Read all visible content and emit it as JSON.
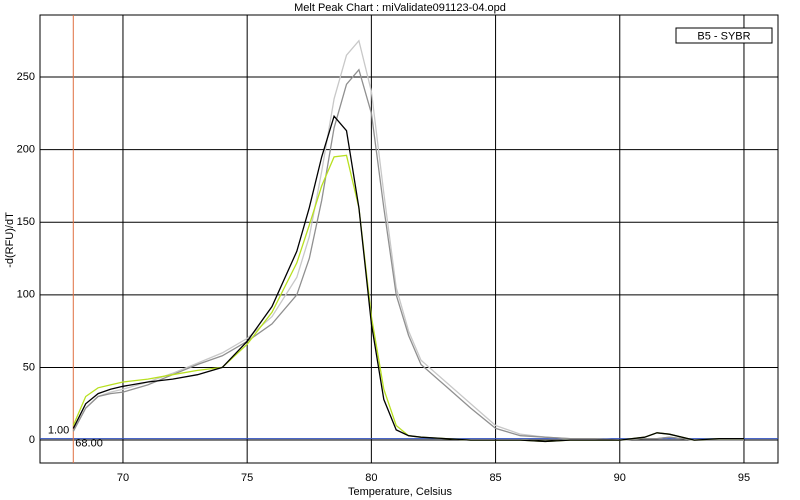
{
  "chart_data": {
    "type": "line",
    "title": "Melt Peak Chart : miValidate091123-04.opd",
    "xlabel": "Temperature, Celsius",
    "ylabel": "-d(RFU)/dT",
    "legend": {
      "label": "B5 - SYBR",
      "position": "upper right"
    },
    "threshold": {
      "value": 1,
      "label": "1.00",
      "color": "#3050c0"
    },
    "cursor": {
      "value": 68,
      "label": "68.00",
      "color": "#e07040"
    },
    "x": [
      68,
      68.5,
      69,
      69.5,
      70,
      71,
      72,
      73,
      74,
      75,
      76,
      77,
      77.5,
      78,
      78.5,
      79,
      79.5,
      80,
      80.5,
      81,
      81.5,
      82,
      83,
      84,
      85,
      86,
      87,
      88,
      89,
      90,
      91,
      91.5,
      92,
      93,
      94,
      95
    ],
    "series": [
      {
        "color": "#c8c8c8",
        "values": [
          6,
          22,
          30,
          33,
          35,
          40,
          46,
          53,
          60,
          70,
          85,
          112,
          140,
          185,
          235,
          265,
          275,
          240,
          170,
          105,
          75,
          55,
          40,
          25,
          10,
          4,
          2,
          1,
          1,
          0,
          1,
          1,
          2,
          0,
          0,
          0
        ]
      },
      {
        "color": "#909090",
        "values": [
          6,
          22,
          30,
          32,
          33,
          38,
          45,
          52,
          58,
          68,
          80,
          100,
          125,
          165,
          215,
          245,
          255,
          225,
          160,
          100,
          72,
          52,
          37,
          22,
          8,
          3,
          2,
          1,
          1,
          0,
          1,
          1,
          2,
          0,
          0,
          0
        ]
      },
      {
        "color": "#b8e020",
        "values": [
          10,
          30,
          36,
          38,
          40,
          42,
          45,
          48,
          50,
          66,
          88,
          122,
          148,
          175,
          195,
          196,
          160,
          85,
          35,
          10,
          3,
          2,
          1,
          0,
          0,
          0,
          -1,
          0,
          0,
          0,
          2,
          5,
          4,
          0,
          1,
          1
        ]
      },
      {
        "color": "#000000",
        "values": [
          8,
          25,
          32,
          35,
          37,
          40,
          42,
          45,
          50,
          68,
          92,
          130,
          160,
          195,
          223,
          213,
          160,
          80,
          28,
          7,
          3,
          2,
          1,
          0,
          0,
          0,
          -1,
          0,
          0,
          0,
          2,
          5,
          4,
          0,
          1,
          1
        ]
      }
    ],
    "xlim": [
      66.66,
      96.37
    ],
    "ylim": [
      -15.8,
      292.7
    ],
    "xticks": [
      70,
      75,
      80,
      85,
      90,
      95
    ],
    "yticks": [
      0,
      50,
      100,
      150,
      200,
      250
    ],
    "grid": true
  }
}
